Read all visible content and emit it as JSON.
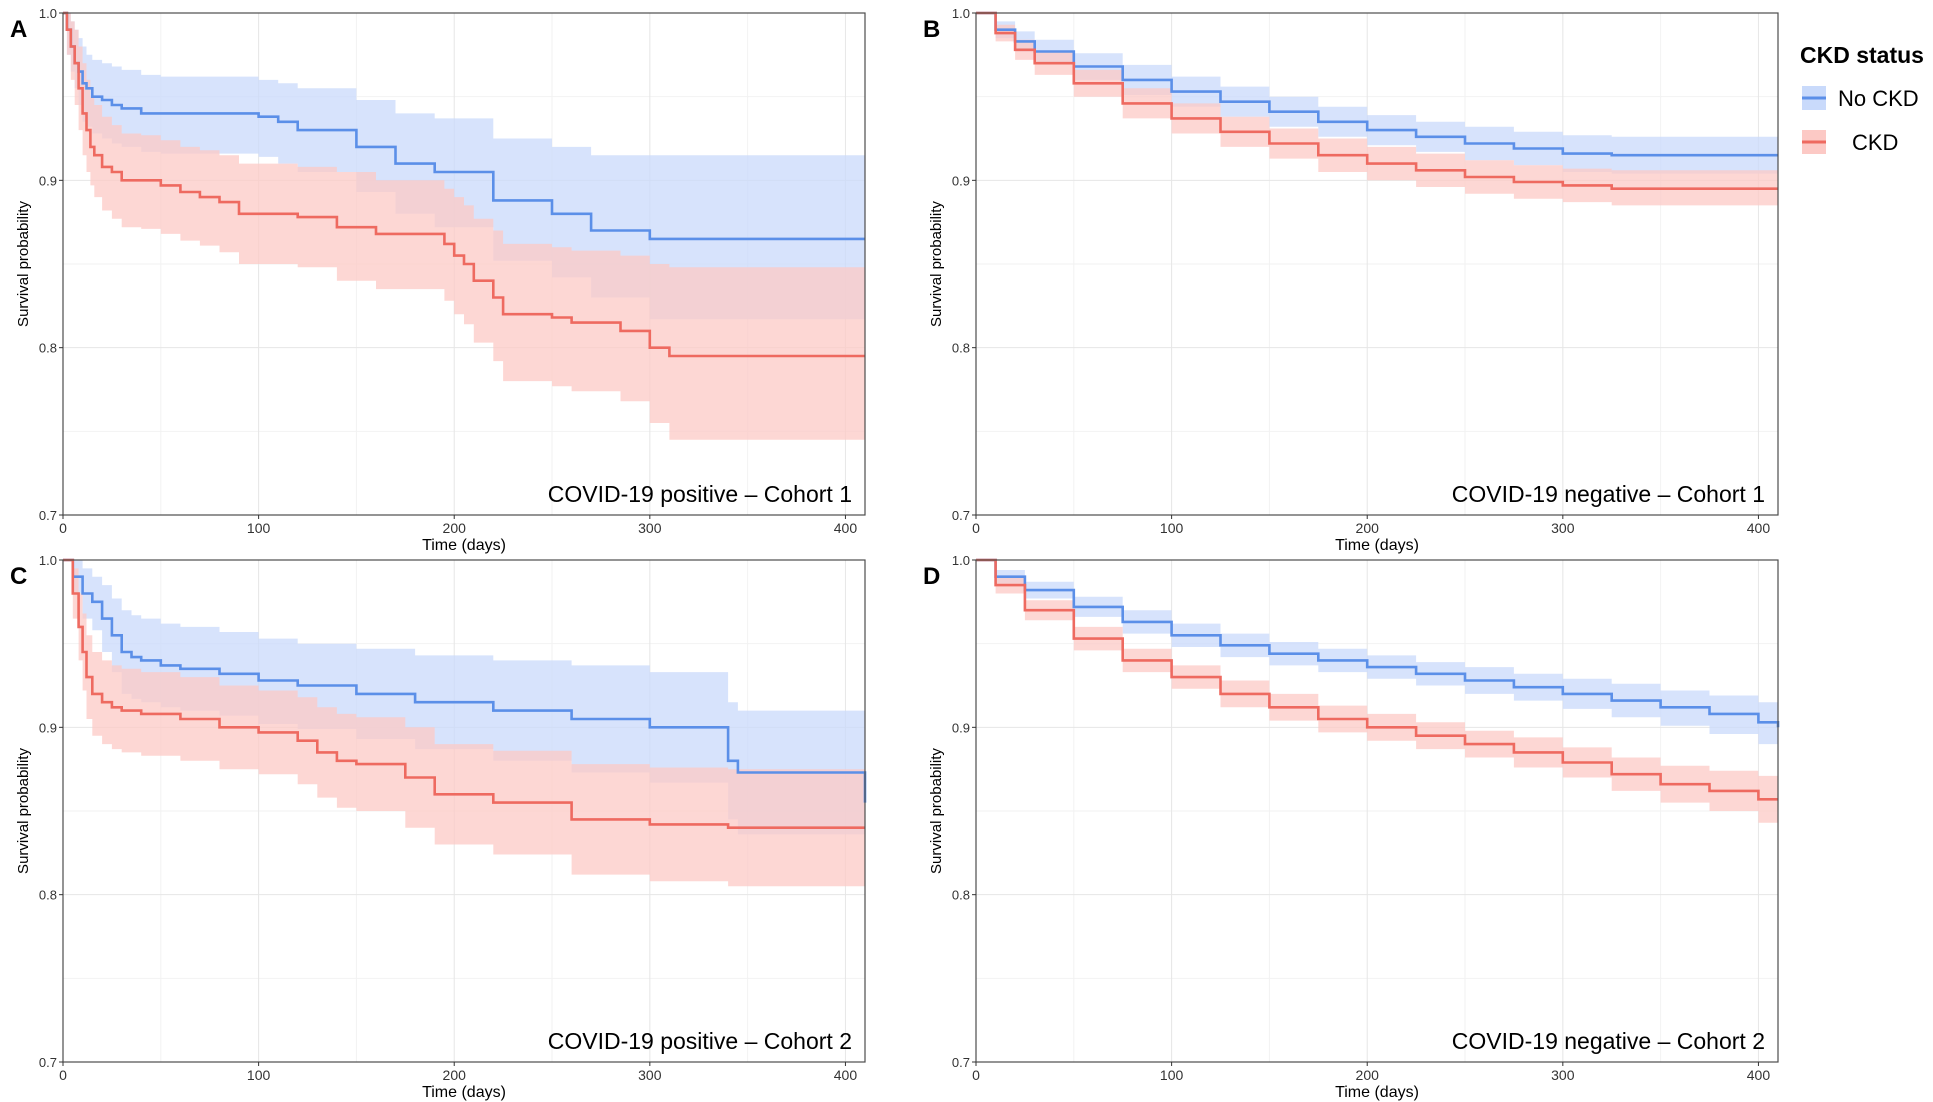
{
  "legend": {
    "title": "CKD status",
    "items": [
      {
        "label": "No CKD",
        "color": "#5B8FE8",
        "fill": "#C9DAFB"
      },
      {
        "label": "CKD",
        "color": "#EE6A60",
        "fill": "#FCC9C5"
      }
    ]
  },
  "chart_data": [
    {
      "type": "line",
      "panel_letter": "A",
      "annotation": "COVID-19 positive – Cohort 1",
      "xlabel": "Time (days)",
      "ylabel": "Survival probability",
      "xlim": [
        0,
        410
      ],
      "ylim": [
        0.7,
        1.0
      ],
      "xticks": [
        0,
        100,
        200,
        300,
        400
      ],
      "yticks": [
        0.7,
        0.8,
        0.9,
        1.0
      ],
      "ytick_labels": [
        "0.7",
        "0.8",
        "0.9",
        "1.0"
      ],
      "grid": true,
      "series": [
        {
          "name": "No CKD",
          "x": [
            0,
            2,
            4,
            6,
            8,
            10,
            12,
            15,
            20,
            25,
            30,
            40,
            50,
            60,
            100,
            110,
            120,
            150,
            170,
            190,
            215,
            220,
            235,
            250,
            270,
            300,
            330,
            410
          ],
          "y": [
            1.0,
            0.99,
            0.98,
            0.97,
            0.965,
            0.958,
            0.955,
            0.95,
            0.948,
            0.945,
            0.943,
            0.94,
            0.94,
            0.94,
            0.938,
            0.935,
            0.93,
            0.92,
            0.91,
            0.905,
            0.905,
            0.888,
            0.888,
            0.88,
            0.87,
            0.865,
            0.865,
            0.865
          ],
          "upper": [
            1.0,
            1.0,
            0.995,
            0.99,
            0.985,
            0.98,
            0.975,
            0.972,
            0.97,
            0.968,
            0.966,
            0.963,
            0.962,
            0.962,
            0.96,
            0.958,
            0.955,
            0.948,
            0.94,
            0.937,
            0.937,
            0.925,
            0.925,
            0.92,
            0.915,
            0.915,
            0.915,
            0.915
          ],
          "lower": [
            1.0,
            0.975,
            0.965,
            0.955,
            0.945,
            0.935,
            0.932,
            0.928,
            0.925,
            0.922,
            0.92,
            0.917,
            0.916,
            0.916,
            0.914,
            0.91,
            0.905,
            0.893,
            0.88,
            0.872,
            0.872,
            0.852,
            0.852,
            0.842,
            0.83,
            0.817,
            0.817,
            0.817
          ]
        },
        {
          "name": "CKD",
          "x": [
            0,
            2,
            4,
            6,
            8,
            10,
            12,
            14,
            16,
            20,
            25,
            30,
            40,
            50,
            60,
            70,
            80,
            90,
            120,
            140,
            160,
            180,
            195,
            200,
            205,
            210,
            220,
            225,
            250,
            260,
            285,
            300,
            310,
            410
          ],
          "y": [
            1.0,
            0.99,
            0.98,
            0.97,
            0.955,
            0.94,
            0.93,
            0.92,
            0.915,
            0.908,
            0.905,
            0.9,
            0.9,
            0.897,
            0.893,
            0.89,
            0.887,
            0.88,
            0.878,
            0.872,
            0.868,
            0.868,
            0.862,
            0.855,
            0.85,
            0.84,
            0.83,
            0.82,
            0.818,
            0.815,
            0.81,
            0.8,
            0.795,
            0.795
          ],
          "upper": [
            1.0,
            1.0,
            0.995,
            0.99,
            0.98,
            0.97,
            0.96,
            0.95,
            0.945,
            0.938,
            0.933,
            0.928,
            0.927,
            0.924,
            0.92,
            0.918,
            0.915,
            0.91,
            0.908,
            0.905,
            0.9,
            0.9,
            0.895,
            0.89,
            0.885,
            0.877,
            0.87,
            0.862,
            0.86,
            0.858,
            0.855,
            0.85,
            0.848,
            0.848
          ],
          "lower": [
            1.0,
            0.975,
            0.96,
            0.945,
            0.93,
            0.915,
            0.905,
            0.897,
            0.89,
            0.882,
            0.877,
            0.872,
            0.871,
            0.868,
            0.864,
            0.861,
            0.857,
            0.85,
            0.848,
            0.84,
            0.835,
            0.835,
            0.828,
            0.82,
            0.814,
            0.803,
            0.792,
            0.78,
            0.777,
            0.774,
            0.768,
            0.755,
            0.745,
            0.745
          ]
        }
      ]
    },
    {
      "type": "line",
      "panel_letter": "B",
      "annotation": "COVID-19 negative – Cohort 1",
      "xlabel": "Time (days)",
      "ylabel": "Survival probability",
      "xlim": [
        0,
        410
      ],
      "ylim": [
        0.7,
        1.0
      ],
      "xticks": [
        0,
        100,
        200,
        300,
        400
      ],
      "yticks": [
        0.7,
        0.8,
        0.9,
        1.0
      ],
      "ytick_labels": [
        "0.7",
        "0.8",
        "0.9",
        "1.0"
      ],
      "grid": true,
      "series": [
        {
          "name": "No CKD",
          "x": [
            0,
            10,
            20,
            30,
            50,
            75,
            100,
            125,
            150,
            175,
            200,
            225,
            250,
            275,
            300,
            325,
            350,
            410
          ],
          "y": [
            1.0,
            0.99,
            0.983,
            0.977,
            0.968,
            0.96,
            0.953,
            0.947,
            0.941,
            0.935,
            0.93,
            0.926,
            0.922,
            0.919,
            0.916,
            0.915,
            0.915,
            0.915
          ],
          "upper": [
            1.0,
            0.995,
            0.989,
            0.984,
            0.976,
            0.969,
            0.962,
            0.956,
            0.95,
            0.944,
            0.939,
            0.935,
            0.932,
            0.929,
            0.927,
            0.926,
            0.926,
            0.926
          ],
          "lower": [
            1.0,
            0.985,
            0.977,
            0.97,
            0.96,
            0.951,
            0.944,
            0.938,
            0.932,
            0.926,
            0.921,
            0.917,
            0.912,
            0.909,
            0.905,
            0.904,
            0.904,
            0.904
          ]
        },
        {
          "name": "CKD",
          "x": [
            0,
            10,
            20,
            30,
            50,
            75,
            100,
            125,
            150,
            175,
            200,
            225,
            250,
            275,
            300,
            325,
            350,
            410
          ],
          "y": [
            1.0,
            0.988,
            0.978,
            0.97,
            0.958,
            0.946,
            0.937,
            0.929,
            0.922,
            0.915,
            0.91,
            0.906,
            0.902,
            0.899,
            0.897,
            0.895,
            0.895,
            0.895
          ],
          "upper": [
            1.0,
            0.993,
            0.984,
            0.977,
            0.966,
            0.955,
            0.946,
            0.938,
            0.931,
            0.925,
            0.92,
            0.916,
            0.912,
            0.909,
            0.907,
            0.906,
            0.906,
            0.906
          ],
          "lower": [
            1.0,
            0.983,
            0.972,
            0.963,
            0.95,
            0.937,
            0.928,
            0.92,
            0.913,
            0.905,
            0.9,
            0.896,
            0.892,
            0.889,
            0.887,
            0.885,
            0.885,
            0.885
          ]
        }
      ]
    },
    {
      "type": "line",
      "panel_letter": "C",
      "annotation": "COVID-19 positive – Cohort 2",
      "xlabel": "Time (days)",
      "ylabel": "Survival probability",
      "xlim": [
        0,
        410
      ],
      "ylim": [
        0.7,
        1.0
      ],
      "xticks": [
        0,
        100,
        200,
        300,
        400
      ],
      "yticks": [
        0.7,
        0.8,
        0.9,
        1.0
      ],
      "ytick_labels": [
        "0.7",
        "0.8",
        "0.9",
        "1.0"
      ],
      "grid": true,
      "series": [
        {
          "name": "No CKD",
          "x": [
            0,
            5,
            10,
            15,
            20,
            25,
            30,
            35,
            40,
            50,
            60,
            80,
            100,
            120,
            150,
            180,
            200,
            220,
            260,
            300,
            335,
            340,
            345,
            408,
            410
          ],
          "y": [
            1.0,
            0.99,
            0.98,
            0.975,
            0.965,
            0.955,
            0.945,
            0.942,
            0.94,
            0.937,
            0.935,
            0.932,
            0.928,
            0.925,
            0.92,
            0.915,
            0.915,
            0.91,
            0.905,
            0.9,
            0.9,
            0.88,
            0.873,
            0.873,
            0.855
          ],
          "upper": [
            1.0,
            1.0,
            0.995,
            0.99,
            0.985,
            0.977,
            0.97,
            0.967,
            0.965,
            0.962,
            0.96,
            0.957,
            0.953,
            0.95,
            0.947,
            0.943,
            0.943,
            0.94,
            0.937,
            0.933,
            0.933,
            0.915,
            0.91,
            0.91,
            0.905
          ],
          "lower": [
            1.0,
            0.98,
            0.965,
            0.958,
            0.945,
            0.933,
            0.92,
            0.917,
            0.915,
            0.912,
            0.91,
            0.907,
            0.902,
            0.899,
            0.893,
            0.887,
            0.887,
            0.88,
            0.873,
            0.867,
            0.867,
            0.845,
            0.836,
            0.836,
            0.8
          ]
        },
        {
          "name": "CKD",
          "x": [
            0,
            5,
            8,
            10,
            12,
            15,
            20,
            25,
            30,
            40,
            60,
            80,
            100,
            120,
            130,
            140,
            150,
            175,
            190,
            220,
            260,
            300,
            340,
            410
          ],
          "y": [
            1.0,
            0.98,
            0.96,
            0.945,
            0.93,
            0.92,
            0.915,
            0.912,
            0.91,
            0.908,
            0.905,
            0.9,
            0.897,
            0.892,
            0.885,
            0.88,
            0.878,
            0.87,
            0.86,
            0.855,
            0.845,
            0.842,
            0.84,
            0.84
          ],
          "upper": [
            1.0,
            0.995,
            0.98,
            0.968,
            0.955,
            0.945,
            0.94,
            0.937,
            0.935,
            0.933,
            0.93,
            0.925,
            0.922,
            0.918,
            0.912,
            0.908,
            0.906,
            0.9,
            0.89,
            0.886,
            0.878,
            0.876,
            0.875,
            0.875
          ],
          "lower": [
            1.0,
            0.965,
            0.94,
            0.922,
            0.905,
            0.895,
            0.89,
            0.887,
            0.885,
            0.883,
            0.88,
            0.875,
            0.872,
            0.866,
            0.858,
            0.852,
            0.85,
            0.84,
            0.83,
            0.824,
            0.812,
            0.808,
            0.805,
            0.805
          ]
        }
      ]
    },
    {
      "type": "line",
      "panel_letter": "D",
      "annotation": "COVID-19 negative – Cohort 2",
      "xlabel": "Time (days)",
      "ylabel": "Survival probability",
      "xlim": [
        0,
        410
      ],
      "ylim": [
        0.7,
        1.0
      ],
      "xticks": [
        0,
        100,
        200,
        300,
        400
      ],
      "yticks": [
        0.7,
        0.8,
        0.9,
        1.0
      ],
      "ytick_labels": [
        "0.7",
        "0.8",
        "0.9",
        "1.0"
      ],
      "grid": true,
      "series": [
        {
          "name": "No CKD",
          "x": [
            0,
            10,
            25,
            50,
            75,
            100,
            125,
            150,
            175,
            200,
            225,
            250,
            275,
            300,
            325,
            350,
            375,
            400,
            410
          ],
          "y": [
            1.0,
            0.99,
            0.982,
            0.972,
            0.963,
            0.955,
            0.949,
            0.944,
            0.94,
            0.936,
            0.932,
            0.928,
            0.924,
            0.92,
            0.916,
            0.912,
            0.908,
            0.903,
            0.9
          ],
          "upper": [
            1.0,
            0.994,
            0.987,
            0.978,
            0.97,
            0.962,
            0.956,
            0.951,
            0.947,
            0.943,
            0.939,
            0.936,
            0.932,
            0.929,
            0.926,
            0.922,
            0.919,
            0.915,
            0.913
          ],
          "lower": [
            1.0,
            0.986,
            0.977,
            0.966,
            0.956,
            0.948,
            0.942,
            0.937,
            0.933,
            0.929,
            0.925,
            0.92,
            0.916,
            0.911,
            0.906,
            0.901,
            0.896,
            0.89,
            0.887
          ]
        },
        {
          "name": "CKD",
          "x": [
            0,
            10,
            25,
            50,
            75,
            100,
            125,
            150,
            175,
            200,
            225,
            250,
            275,
            300,
            325,
            350,
            375,
            400,
            410
          ],
          "y": [
            1.0,
            0.985,
            0.97,
            0.953,
            0.94,
            0.93,
            0.92,
            0.912,
            0.905,
            0.9,
            0.895,
            0.89,
            0.885,
            0.879,
            0.872,
            0.866,
            0.862,
            0.857,
            0.857
          ],
          "upper": [
            1.0,
            0.99,
            0.976,
            0.96,
            0.947,
            0.937,
            0.928,
            0.92,
            0.913,
            0.908,
            0.903,
            0.898,
            0.894,
            0.888,
            0.882,
            0.877,
            0.874,
            0.871,
            0.871
          ],
          "lower": [
            1.0,
            0.98,
            0.964,
            0.946,
            0.933,
            0.923,
            0.912,
            0.904,
            0.897,
            0.892,
            0.887,
            0.882,
            0.876,
            0.87,
            0.862,
            0.855,
            0.85,
            0.843,
            0.843
          ]
        }
      ]
    }
  ]
}
